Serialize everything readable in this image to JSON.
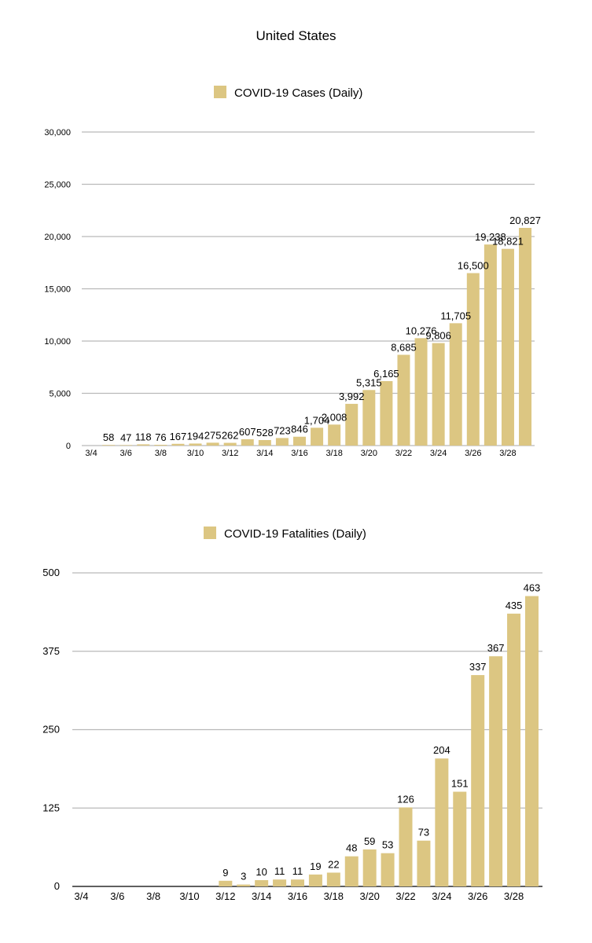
{
  "title": "United States",
  "colors": {
    "bar": "#dcc682",
    "grid": "#b9b9b9"
  },
  "chart_data": [
    {
      "type": "bar",
      "legend": "COVID-19 Cases (Daily)",
      "ylim": [
        0,
        30000
      ],
      "yticks": [
        "0",
        "5,000",
        "10,000",
        "15,000",
        "20,000",
        "25,000",
        "30,000"
      ],
      "xtick_labels": [
        "3/4",
        "3/6",
        "3/8",
        "3/10",
        "3/12",
        "3/14",
        "3/16",
        "3/18",
        "3/20",
        "3/22",
        "3/24",
        "3/26",
        "3/28"
      ],
      "categories": [
        "3/4",
        "3/5",
        "3/6",
        "3/7",
        "3/8",
        "3/9",
        "3/10",
        "3/11",
        "3/12",
        "3/13",
        "3/14",
        "3/15",
        "3/16",
        "3/17",
        "3/18",
        "3/19",
        "3/20",
        "3/21",
        "3/22",
        "3/23",
        "3/24",
        "3/25",
        "3/26",
        "3/27",
        "3/28",
        "3/29"
      ],
      "values": [
        0,
        58,
        47,
        118,
        76,
        167,
        194,
        275,
        262,
        607,
        528,
        723,
        846,
        1704,
        2008,
        3992,
        5315,
        6165,
        8685,
        10276,
        9806,
        11705,
        16500,
        19238,
        18821,
        20827
      ],
      "value_labels": [
        "",
        "58",
        "47",
        "118",
        "76",
        "167",
        "194",
        "275",
        "262",
        "607",
        "528",
        "723",
        "846",
        "1,704",
        "2,008",
        "3,992",
        "5,315",
        "6,165",
        "8,685",
        "10,276",
        "9,806",
        "11,705",
        "16,500",
        "19,238",
        "18,821",
        "20,827"
      ]
    },
    {
      "type": "bar",
      "legend": "COVID-19 Fatalities (Daily)",
      "ylim": [
        0,
        500
      ],
      "yticks": [
        "0",
        "125",
        "250",
        "375",
        "500"
      ],
      "xtick_labels": [
        "3/4",
        "3/6",
        "3/8",
        "3/10",
        "3/12",
        "3/14",
        "3/16",
        "3/18",
        "3/20",
        "3/22",
        "3/24",
        "3/26",
        "3/28"
      ],
      "categories": [
        "3/4",
        "3/5",
        "3/6",
        "3/7",
        "3/8",
        "3/9",
        "3/10",
        "3/11",
        "3/12",
        "3/13",
        "3/14",
        "3/15",
        "3/16",
        "3/17",
        "3/18",
        "3/19",
        "3/20",
        "3/21",
        "3/22",
        "3/23",
        "3/24",
        "3/25",
        "3/26",
        "3/27",
        "3/28",
        "3/29"
      ],
      "values": [
        0,
        0,
        0,
        0,
        0,
        0,
        0,
        0,
        9,
        3,
        10,
        11,
        11,
        19,
        22,
        48,
        59,
        53,
        126,
        73,
        204,
        151,
        337,
        367,
        435,
        463
      ],
      "value_labels": [
        "",
        "",
        "",
        "",
        "",
        "",
        "",
        "",
        "9",
        "3",
        "10",
        "11",
        "11",
        "19",
        "22",
        "48",
        "59",
        "53",
        "126",
        "73",
        "204",
        "151",
        "337",
        "367",
        "435",
        "463"
      ]
    }
  ]
}
